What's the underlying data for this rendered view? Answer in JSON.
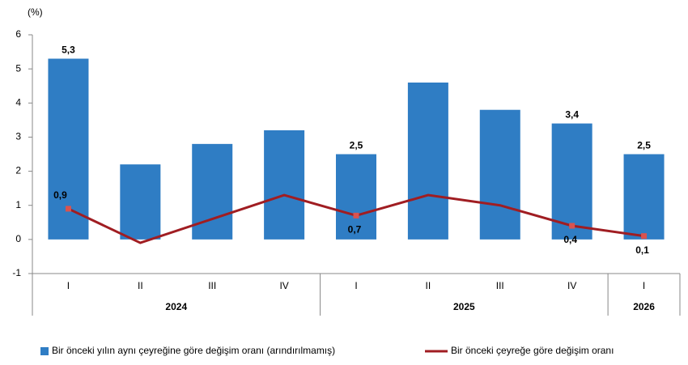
{
  "chart_data": {
    "type": "bar_line",
    "y_axis_label": "(%)",
    "categories": [
      "I",
      "II",
      "III",
      "IV",
      "I",
      "II",
      "III",
      "IV",
      "I"
    ],
    "groups": [
      {
        "label": "2024",
        "count": 4
      },
      {
        "label": "2025",
        "count": 4
      },
      {
        "label": "2026",
        "count": 1
      }
    ],
    "series": [
      {
        "name": "Bir önceki yılın aynı çeyreğine göre değişim oranı (arındırılmamış)",
        "type": "bar",
        "color": "#2f7dc4",
        "values": [
          5.3,
          2.2,
          2.8,
          3.2,
          2.5,
          4.6,
          3.8,
          3.4,
          2.5
        ],
        "value_labels": [
          "5,3",
          null,
          null,
          null,
          "2,5",
          null,
          null,
          "3,4",
          "2,5"
        ]
      },
      {
        "name": "Bir önceki çeyreğe göre değişim oranı",
        "type": "line",
        "color": "#a01d22",
        "values": [
          0.9,
          -0.1,
          0.6,
          1.3,
          0.7,
          1.3,
          1.0,
          0.4,
          0.1
        ],
        "value_labels": [
          "0,9",
          null,
          null,
          null,
          "0,7",
          null,
          null,
          "0,4",
          "0,1"
        ]
      }
    ],
    "ylim": [
      -1,
      6
    ],
    "yticks": [
      -1,
      0,
      1,
      2,
      3,
      4,
      5,
      6
    ],
    "grid": false,
    "legend": "bottom"
  }
}
